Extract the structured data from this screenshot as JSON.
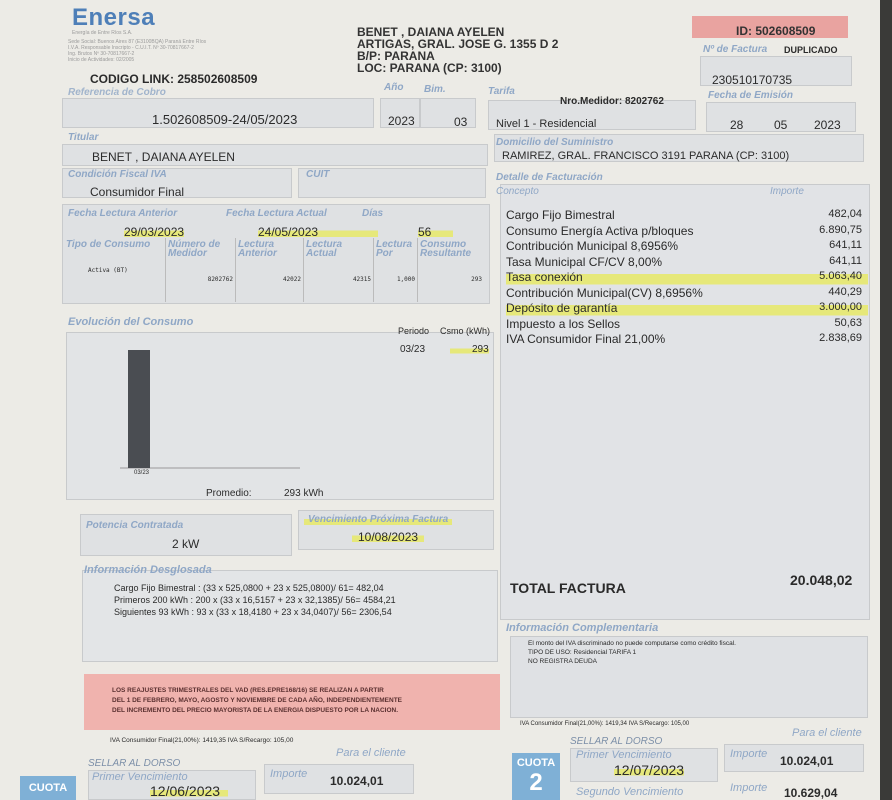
{
  "company": {
    "logo": "Enersa",
    "subtitle": "Energía de Entre Ríos S.A.",
    "fine_print": [
      "Sede Social: Buenos Aires 87 (E3100BQA) Paraná Entre Ríos",
      "I.V.A. Responsable Inscripto - C.U.I.T. Nº 30-70817667-2",
      "Ing. Brutos Nº 30-70817667-2",
      "Inicio de Actividades: 02/2005"
    ]
  },
  "codigo_link": "CODIGO LINK: 258502608509",
  "referencia_label": "Referencia de Cobro",
  "referencia": "1.502608509-24/05/2023",
  "customer": {
    "name": "BENET , DAIANA AYELEN",
    "address": "ARTIGAS, GRAL. JOSE G. 1355   D 2",
    "bp": "B/P: PARANA",
    "loc": "LOC: PARANA (CP: 3100)"
  },
  "id": "ID: 502608509",
  "factura": {
    "label": "Nº de Factura",
    "duplicado": "DUPLICADO",
    "number": "230510170735"
  },
  "periodo": {
    "anio_label": "Año",
    "anio": "2023",
    "bim_label": "Bim.",
    "bim": "03",
    "tarifa_label": "Tarifa",
    "tarifa": "Nivel 1 - Residencial",
    "medidor": "Nro.Medidor: 8202762"
  },
  "emision": {
    "label": "Fecha de Emisión",
    "dia": "28",
    "mes": "05",
    "anio": "2023"
  },
  "titular": {
    "label": "Titular",
    "value": "BENET , DAIANA AYELEN"
  },
  "domicilio": {
    "label": "Domicilio del Suministro",
    "value": "RAMIREZ, GRAL. FRANCISCO 3191    PARANA (CP: 3100)"
  },
  "iva": {
    "label": "Condición Fiscal IVA",
    "value": "Consumidor Final",
    "cuit_label": "CUIT"
  },
  "lectura": {
    "anterior_label": "Fecha Lectura Anterior",
    "anterior": "29/03/2023",
    "actual_label": "Fecha Lectura Actual",
    "actual": "24/05/2023",
    "dias_label": "Días",
    "dias": "56"
  },
  "medicion": {
    "headers": [
      "Tipo de Consumo",
      "Número de Medidor",
      "Lectura Anterior",
      "Lectura Actual",
      "Lectura Por",
      "Consumo Resultante"
    ],
    "row": [
      "Activa (BT)",
      "8202762",
      "42022",
      "42315",
      "1,000",
      "293"
    ]
  },
  "evolucion": {
    "title": "Evolución del Consumo",
    "periodo_label": "Periodo",
    "consumo_label": "Csmo (kWh)",
    "periodo": "03/23",
    "consumo": "293",
    "bar_label": "03/23",
    "promedio_label": "Promedio:",
    "promedio": "293 kWh"
  },
  "chart_data": {
    "type": "bar",
    "categories": [
      "03/23"
    ],
    "values": [
      293
    ],
    "ylim": [
      0,
      293
    ]
  },
  "potencia": {
    "label": "Potencia Contratada",
    "value": "2 kW"
  },
  "vencimiento_proxima": {
    "label": "Vencimiento Próxima Factura",
    "value": "10/08/2023"
  },
  "detalle": {
    "title": "Detalle de Facturación",
    "concepto_label": "Concepto",
    "importe_label": "Importe",
    "items": [
      {
        "concepto": "Cargo Fijo Bimestral",
        "importe": "482,04"
      },
      {
        "concepto": "Consumo Energía Activa p/bloques",
        "importe": "6.890,75"
      },
      {
        "concepto": "Contribución Municipal 8,6956%",
        "importe": "641,11"
      },
      {
        "concepto": "Tasa Municipal CF/CV 8,00%",
        "importe": "641,11"
      },
      {
        "concepto": "Tasa conexión",
        "importe": "5.063,40"
      },
      {
        "concepto": "Contribución Municipal(CV) 8,6956%",
        "importe": "440,29"
      },
      {
        "concepto": "Depósito de garantía",
        "importe": "3.000,00"
      },
      {
        "concepto": "Impuesto a los Sellos",
        "importe": "50,63"
      },
      {
        "concepto": "IVA Consumidor Final 21,00%",
        "importe": "2.838,69"
      }
    ]
  },
  "total": {
    "label": "TOTAL FACTURA",
    "value": "20.048,02"
  },
  "desglosada": {
    "title": "Información Desglosada",
    "lines": [
      "Cargo Fijo Bimestral : (33 x 525,0800 + 23 x 525,0800)/ 61= 482,04",
      "Primeros 200 kWh : 200 x (33 x 16,5157 + 23 x 32,1385)/ 56= 4584,21",
      "Siguientes 93 kWh : 93 x (33 x 18,4180 + 23 x 34,0407)/ 56= 2306,54"
    ]
  },
  "complementaria": {
    "title": "Información Complementaria",
    "lines": [
      "El monto del IVA discriminado no puede computarse como crédito fiscal.",
      "TIPO DE USO: Residencial TARIFA 1",
      "NO REGISTRA DEUDA"
    ]
  },
  "aviso": [
    "LOS REAJUSTES TRIMESTRALES DEL VAD (RES.EPRE168/16) SE REALIZAN A PARTIR",
    "DEL 1 DE FEBRERO, MAYO, AGOSTO Y NOVIEMBRE DE CADA AÑO, INDEPENDIENTEMENTE",
    "DEL INCREMENTO DEL PRECIO MAYORISTA DE LA ENERGIA DISPUESTO POR LA NACION."
  ],
  "cuota1": {
    "iva_line": "IVA Consumidor Final(21,00%): 1419,35   IVA S/Recargo: 105,00",
    "sellar": "SELLAR AL DORSO",
    "para_cliente": "Para el cliente",
    "cuota_label": "CUOTA",
    "venc_label": "Primer Vencimiento",
    "venc": "12/06/2023",
    "importe_label": "Importe",
    "importe": "10.024,01"
  },
  "cuota2": {
    "iva_line": "IVA Consumidor Final(21,00%): 1419,34   IVA S/Recargo: 105,00",
    "sellar": "SELLAR AL DORSO",
    "para_cliente": "Para el cliente",
    "cuota_label": "CUOTA",
    "numero": "2",
    "venc_label": "Primer Vencimiento",
    "venc": "12/07/2023",
    "importe_label": "Importe",
    "importe": "10.024,01",
    "venc2_label": "Segundo Vencimiento",
    "importe2": "10.629,04"
  }
}
